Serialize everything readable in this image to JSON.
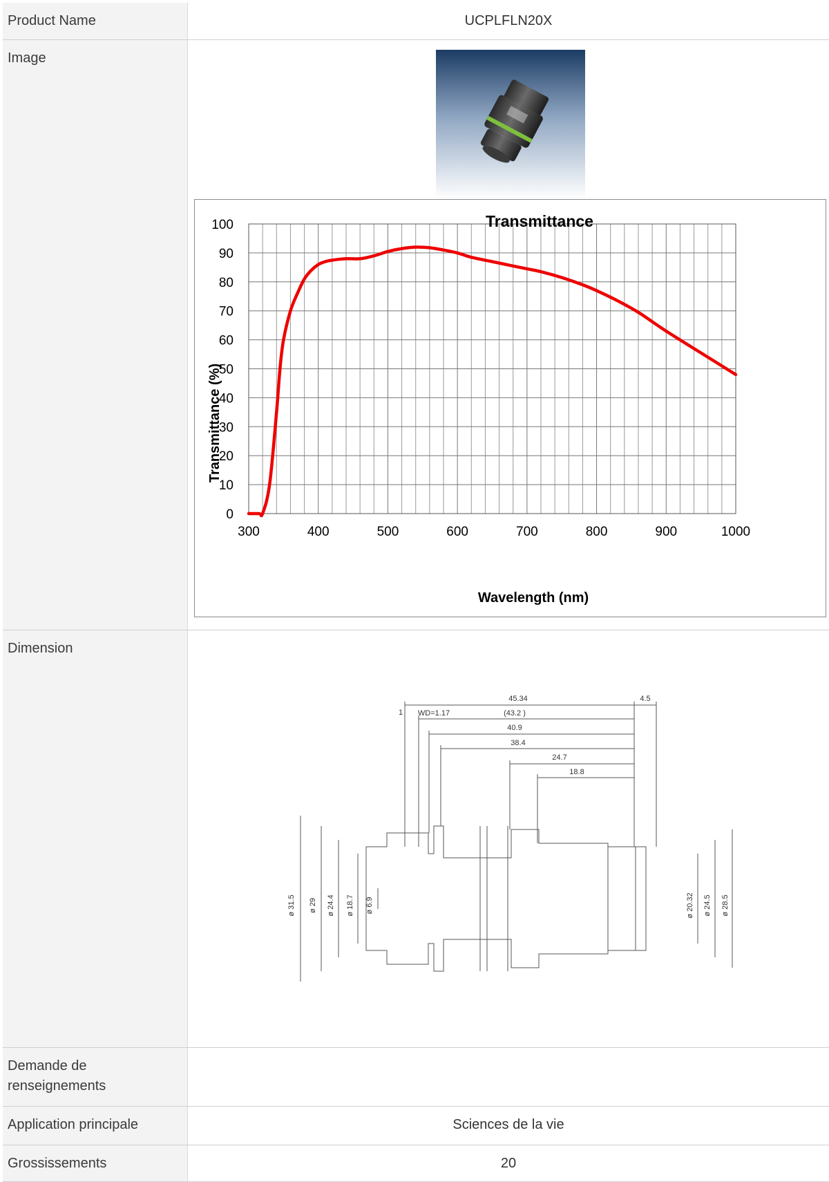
{
  "rows": {
    "product_name": {
      "label": "Product Name",
      "value": "UCPLFLN20X"
    },
    "image": {
      "label": "Image"
    },
    "dimension": {
      "label": "Dimension"
    },
    "demande": {
      "label": "Demande de renseignements",
      "value": ""
    },
    "application": {
      "label": "Application principale",
      "value": "Sciences de la vie"
    },
    "grossissements": {
      "label": "Grossissements",
      "value": "20"
    }
  },
  "chart_data": {
    "type": "line",
    "title": "Transmittance",
    "xlabel": "Wavelength (nm)",
    "ylabel": "Transmittance (%)",
    "xlim": [
      300,
      1000
    ],
    "ylim": [
      0,
      100
    ],
    "xticks": [
      300,
      400,
      500,
      600,
      700,
      800,
      900,
      1000
    ],
    "yticks": [
      0,
      10,
      20,
      30,
      40,
      50,
      60,
      70,
      80,
      90,
      100
    ],
    "grid": true,
    "series_color": "#ee0000",
    "x": [
      300,
      315,
      320,
      330,
      340,
      345,
      350,
      360,
      370,
      380,
      390,
      400,
      410,
      420,
      440,
      460,
      480,
      500,
      520,
      540,
      560,
      580,
      600,
      620,
      650,
      680,
      700,
      720,
      750,
      780,
      800,
      830,
      860,
      900,
      950,
      1000
    ],
    "y": [
      0,
      0,
      0,
      10,
      35,
      50,
      60,
      70,
      76,
      81,
      84,
      86,
      87,
      87.5,
      88,
      88,
      89,
      90.5,
      91.5,
      92,
      91.8,
      91,
      90,
      88.5,
      87,
      85.5,
      84.5,
      83.5,
      81.5,
      79,
      77,
      73.5,
      69.5,
      63,
      55.5,
      48
    ]
  },
  "dimension_labels": {
    "top": [
      "45.34",
      "4.5",
      "1",
      "WD=1.17",
      "(43.2 )",
      "40.9",
      "38.4",
      "24.7",
      "18.8"
    ],
    "left": [
      "ø 31.5",
      "ø 29",
      "ø 24.4",
      "ø 18.7",
      "ø 6.9"
    ],
    "right": [
      "ø 20.32",
      "ø 24.5",
      "ø 28.5"
    ]
  },
  "colors": {
    "label_bg": "#f3f3f3",
    "border": "#cfcfcf",
    "curve": "#ee0000",
    "photo_bg_top": "#1c3c64",
    "photo_bg_bottom": "#ffffff"
  }
}
